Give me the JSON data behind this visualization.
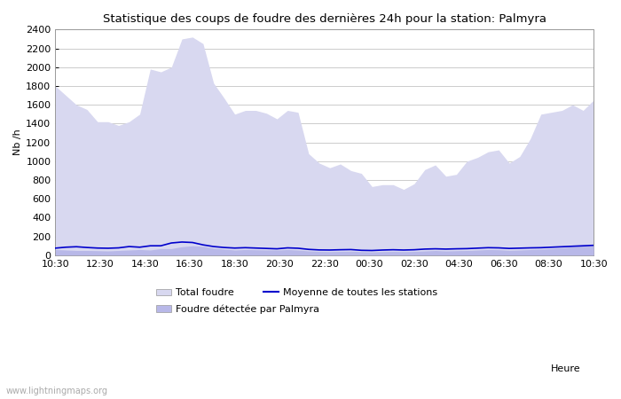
{
  "title": "Statistique des coups de foudre des dernières 24h pour la station: Palmyra",
  "xlabel": "Heure",
  "ylabel": "Nb /h",
  "ylim": [
    0,
    2400
  ],
  "yticks": [
    0,
    200,
    400,
    600,
    800,
    1000,
    1200,
    1400,
    1600,
    1800,
    2000,
    2200,
    2400
  ],
  "xtick_labels": [
    "10:30",
    "12:30",
    "14:30",
    "16:30",
    "18:30",
    "20:30",
    "22:30",
    "00:30",
    "02:30",
    "04:30",
    "06:30",
    "08:30",
    "10:30"
  ],
  "bg_color": "#ffffff",
  "plot_bg_color": "#ffffff",
  "grid_color": "#cccccc",
  "area_total_color": "#d8d8f0",
  "area_palmyra_color": "#b8b8e8",
  "line_color": "#0000cc",
  "watermark": "www.lightningmaps.org",
  "legend_total": "Total foudre",
  "legend_palmyra": "Foudre détectée par Palmyra",
  "legend_mean": "Moyenne de toutes les stations",
  "total_foudre": [
    1800,
    1700,
    1600,
    1550,
    1420,
    1420,
    1380,
    1420,
    1500,
    1980,
    1950,
    2000,
    2300,
    2320,
    2250,
    1830,
    1670,
    1500,
    1540,
    1540,
    1510,
    1450,
    1540,
    1520,
    1080,
    980,
    930,
    970,
    900,
    870,
    730,
    750,
    750,
    700,
    760,
    910,
    960,
    840,
    860,
    1000,
    1040,
    1100,
    1120,
    980,
    1050,
    1240,
    1500,
    1520,
    1540,
    1600,
    1540,
    1650
  ],
  "palmyra_foudre": [
    60,
    55,
    50,
    50,
    48,
    45,
    50,
    55,
    60,
    55,
    70,
    70,
    90,
    100,
    95,
    75,
    65,
    55,
    60,
    58,
    56,
    55,
    60,
    55,
    45,
    40,
    38,
    40,
    42,
    38,
    35,
    38,
    40,
    38,
    40,
    45,
    50,
    45,
    48,
    50,
    55,
    60,
    58,
    52,
    55,
    60,
    65,
    70,
    80,
    90,
    100,
    100
  ],
  "mean_line": [
    75,
    85,
    90,
    82,
    76,
    74,
    78,
    92,
    85,
    100,
    100,
    130,
    140,
    135,
    110,
    92,
    82,
    76,
    80,
    76,
    72,
    68,
    78,
    74,
    62,
    56,
    55,
    58,
    60,
    52,
    50,
    55,
    58,
    55,
    58,
    65,
    68,
    65,
    68,
    70,
    75,
    80,
    78,
    72,
    75,
    78,
    80,
    85,
    90,
    95,
    100,
    105
  ]
}
